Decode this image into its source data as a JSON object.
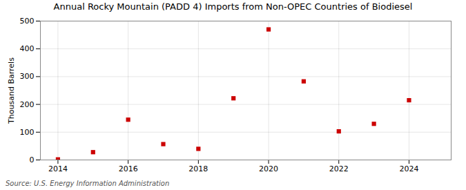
{
  "chart_data": {
    "type": "scatter",
    "title": "Annual Rocky Mountain (PADD 4) Imports from Non-OPEC Countries of Biodiesel",
    "ylabel": "Thousand Barrels",
    "source": "Source: U.S. Energy Information Administration",
    "x": [
      2014,
      2015,
      2016,
      2017,
      2018,
      2019,
      2020,
      2021,
      2022,
      2023,
      2024
    ],
    "values": [
      2,
      28,
      145,
      57,
      40,
      222,
      470,
      283,
      103,
      130,
      215
    ],
    "color": "#cc0000",
    "marker": "square",
    "xlim": [
      2013.5,
      2025.2
    ],
    "xticks": [
      2014,
      2016,
      2018,
      2020,
      2022,
      2024
    ],
    "ylim": [
      0,
      500
    ],
    "yticks": [
      0,
      100,
      200,
      300,
      400,
      500
    ],
    "grid": true
  }
}
